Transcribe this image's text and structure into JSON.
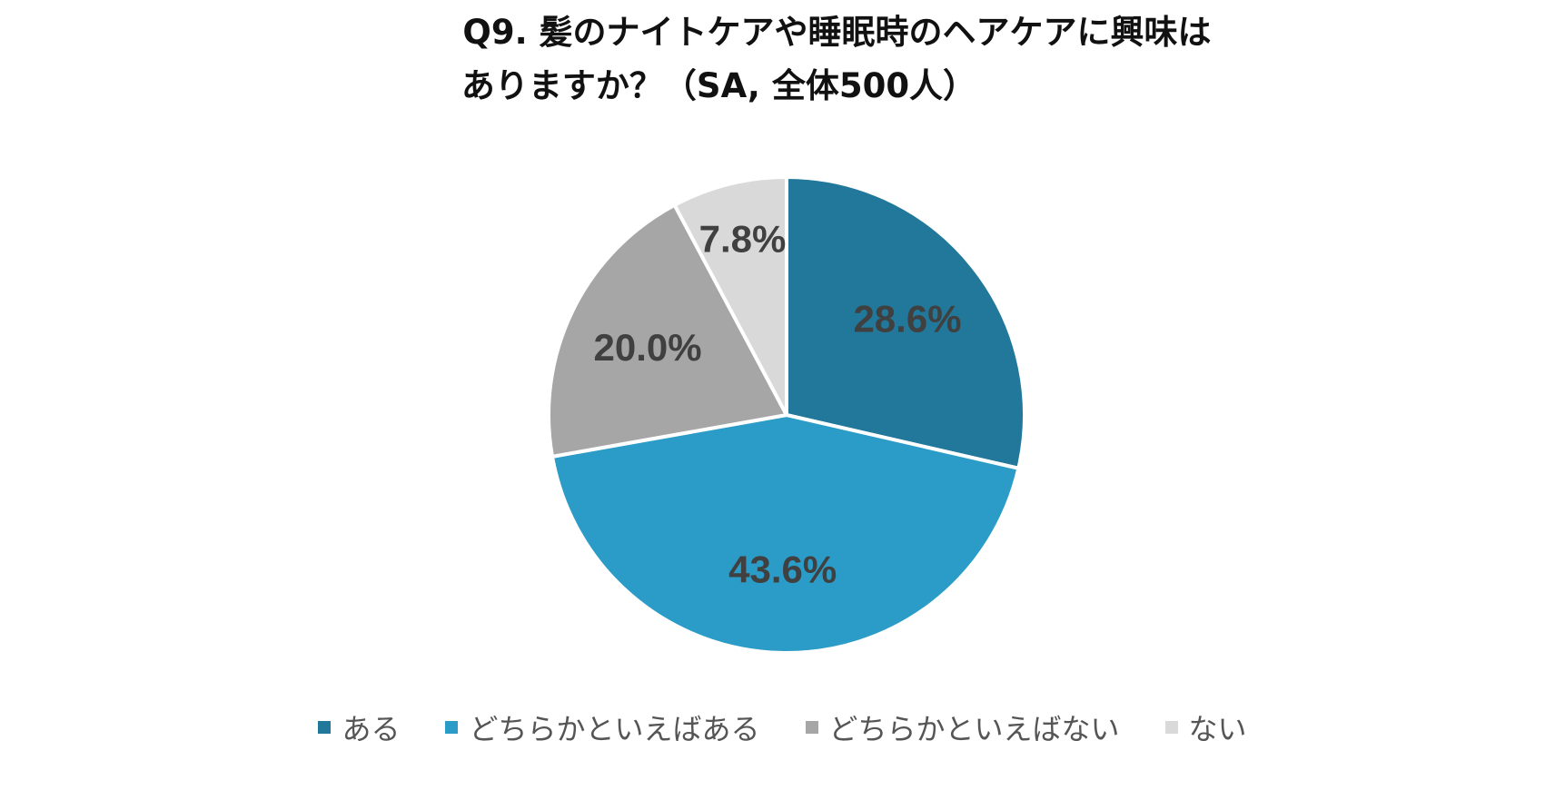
{
  "chart_data": {
    "type": "pie",
    "title_line1": "Q9. 髪のナイトケアや睡眠時のヘアケアに興味は",
    "title_line2": "ありますか？（SA, 全体500人）",
    "slices": [
      {
        "label": "ある",
        "value": 28.6,
        "display": "28.6%",
        "color": "#21789a"
      },
      {
        "label": "どちらかといえばある",
        "value": 43.6,
        "display": "43.6%",
        "color": "#2b9bc8"
      },
      {
        "label": "どちらかといえばない",
        "value": 20.0,
        "display": "20.0%",
        "color": "#a6a6a6"
      },
      {
        "label": "ない",
        "value": 7.8,
        "display": "7.8%",
        "color": "#d9d9d9"
      }
    ],
    "legend_position": "bottom"
  }
}
